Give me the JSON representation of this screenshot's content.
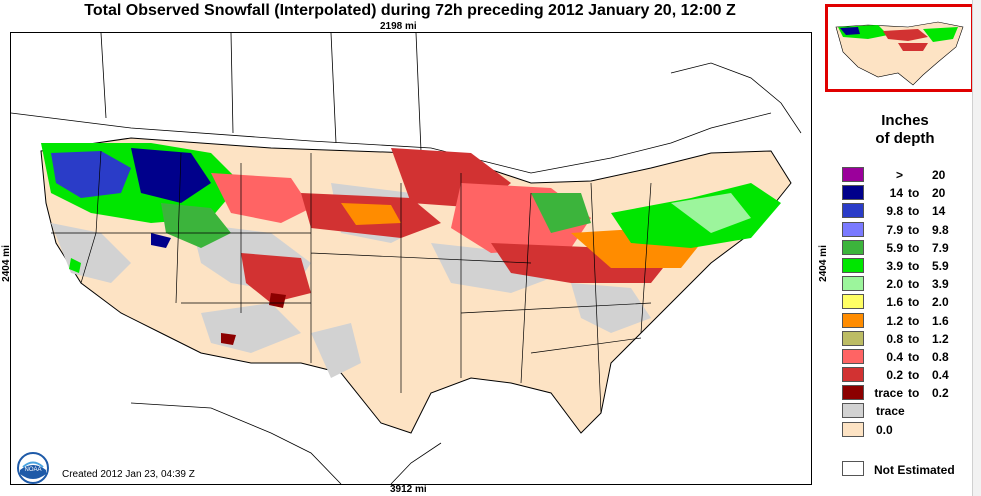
{
  "title": "Total Observed Snowfall (Interpolated) during 72h preceding 2012 January 20, 12:00 Z",
  "dimensions": {
    "top": "2198 mi",
    "bottom": "3912 mi",
    "left": "2404 mi",
    "right": "2404 mi"
  },
  "created": "Created 2012 Jan 23, 04:39 Z",
  "logo_text": "NOAA",
  "legend": {
    "title_line1": "Inches",
    "title_line2": "of depth",
    "rows": [
      {
        "lo": ">",
        "to": "",
        "hi": "20",
        "color": "#9b009b"
      },
      {
        "lo": "14",
        "to": "to",
        "hi": "20",
        "color": "#00008b"
      },
      {
        "lo": "9.8",
        "to": "to",
        "hi": "14",
        "color": "#2a3cc8"
      },
      {
        "lo": "7.9",
        "to": "to",
        "hi": "9.8",
        "color": "#7a7aff"
      },
      {
        "lo": "5.9",
        "to": "to",
        "hi": "7.9",
        "color": "#3cb43c"
      },
      {
        "lo": "3.9",
        "to": "to",
        "hi": "5.9",
        "color": "#00e600"
      },
      {
        "lo": "2.0",
        "to": "to",
        "hi": "3.9",
        "color": "#9cf59c"
      },
      {
        "lo": "1.6",
        "to": "to",
        "hi": "2.0",
        "color": "#ffff64"
      },
      {
        "lo": "1.2",
        "to": "to",
        "hi": "1.6",
        "color": "#ff8c00"
      },
      {
        "lo": "0.8",
        "to": "to",
        "hi": "1.2",
        "color": "#bcbc64"
      },
      {
        "lo": "0.4",
        "to": "to",
        "hi": "0.8",
        "color": "#ff6464"
      },
      {
        "lo": "0.2",
        "to": "to",
        "hi": "0.4",
        "color": "#d23232"
      },
      {
        "lo": "trace",
        "to": "to",
        "hi": "0.2",
        "color": "#8c0000"
      },
      {
        "single": "trace",
        "color": "#d2d2d2"
      },
      {
        "single": "0.0",
        "color": "#fde3c4"
      }
    ],
    "not_estimated": {
      "label": "Not Estimated",
      "color": "#ffffff"
    }
  }
}
